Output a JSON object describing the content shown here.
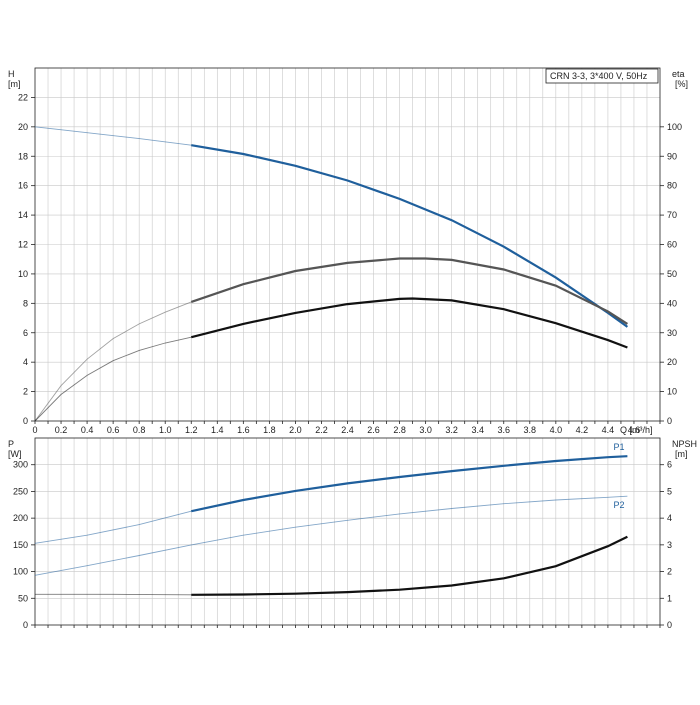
{
  "colors": {
    "blue": "#1f5f9c",
    "dark": "#111111",
    "grey": "#555555",
    "thin": "#9a9a9a",
    "grid": "#c8c8c8"
  },
  "chart_data": [
    {
      "type": "line",
      "legend_box": "CRN 3-3, 3*400 V, 50Hz",
      "y_left_label_line1": "H",
      "y_left_label_line2": "[m]",
      "y_right_label_line1": "eta",
      "y_right_label_line2": "[%]",
      "x_label": "Q [m³/h]",
      "xlim": [
        0,
        4.8
      ],
      "x_ticks": [
        "0",
        "0.2",
        "0.4",
        "0.6",
        "0.8",
        "1.0",
        "1.2",
        "1.4",
        "1.6",
        "1.8",
        "2.0",
        "2.2",
        "2.4",
        "2.6",
        "2.8",
        "3.0",
        "3.2",
        "3.4",
        "3.6",
        "3.8",
        "4.0",
        "4.2",
        "4.4",
        "4.6"
      ],
      "y_left_lim": [
        0,
        24
      ],
      "y_left_ticks": [
        "0",
        "2",
        "4",
        "6",
        "8",
        "10",
        "12",
        "14",
        "16",
        "18",
        "20",
        "22"
      ],
      "y_right_lim": [
        0,
        120
      ],
      "y_right_ticks": [
        "0",
        "10",
        "20",
        "30",
        "40",
        "50",
        "60",
        "70",
        "80",
        "90",
        "100"
      ],
      "grid": true,
      "series": [
        {
          "axis": "left",
          "color_key": "blue",
          "bold_from_x": 1.2,
          "x": [
            0,
            0.4,
            0.8,
            1.2,
            1.6,
            2.0,
            2.4,
            2.8,
            3.2,
            3.6,
            4.0,
            4.4,
            4.55
          ],
          "y": [
            20.0,
            19.6,
            19.2,
            18.75,
            18.15,
            17.35,
            16.35,
            15.1,
            13.65,
            11.85,
            9.75,
            7.35,
            6.4
          ]
        },
        {
          "axis": "left",
          "color_key": "grey",
          "bold_from_x": 1.2,
          "x": [
            0,
            0.2,
            0.4,
            0.6,
            0.8,
            1.0,
            1.2,
            1.6,
            2.0,
            2.4,
            2.8,
            3.0,
            3.2,
            3.6,
            4.0,
            4.4,
            4.55
          ],
          "y": [
            0,
            2.4,
            4.2,
            5.6,
            6.6,
            7.4,
            8.1,
            9.3,
            10.2,
            10.75,
            11.05,
            11.05,
            10.95,
            10.3,
            9.2,
            7.45,
            6.6
          ]
        },
        {
          "axis": "left",
          "color_key": "dark",
          "bold_from_x": 1.2,
          "x": [
            0,
            0.2,
            0.4,
            0.6,
            0.8,
            1.0,
            1.2,
            1.6,
            2.0,
            2.4,
            2.8,
            2.9,
            3.2,
            3.6,
            4.0,
            4.4,
            4.55
          ],
          "y": [
            0,
            1.8,
            3.1,
            4.1,
            4.8,
            5.3,
            5.7,
            6.6,
            7.35,
            7.95,
            8.3,
            8.33,
            8.2,
            7.6,
            6.65,
            5.5,
            5.0
          ]
        }
      ]
    },
    {
      "type": "line",
      "y_left_label_line1": "P",
      "y_left_label_line2": "[W]",
      "y_right_label_line1": "NPSH",
      "y_right_label_line2": "[m]",
      "xlim": [
        0,
        4.8
      ],
      "y_left_lim": [
        0,
        350
      ],
      "y_left_ticks": [
        "0",
        "50",
        "100",
        "150",
        "200",
        "250",
        "300"
      ],
      "y_right_lim": [
        0,
        7
      ],
      "y_right_ticks": [
        "0",
        "1",
        "2",
        "3",
        "4",
        "5",
        "6"
      ],
      "grid": true,
      "series": [
        {
          "name": "P1",
          "axis": "left",
          "color_key": "blue",
          "bold_from_x": 1.2,
          "x": [
            0,
            0.4,
            0.8,
            1.2,
            1.6,
            2.0,
            2.4,
            2.8,
            3.2,
            3.6,
            4.0,
            4.4,
            4.55
          ],
          "y": [
            153,
            168,
            188,
            213,
            234,
            251,
            265,
            277,
            288,
            298,
            307,
            314,
            316
          ]
        },
        {
          "name": "P2",
          "axis": "left",
          "color_key": "blue",
          "bold_from_x": 99,
          "x": [
            0,
            0.4,
            0.8,
            1.2,
            1.6,
            2.0,
            2.4,
            2.8,
            3.2,
            3.6,
            4.0,
            4.4,
            4.55
          ],
          "y": [
            93,
            111,
            130,
            150,
            168,
            183,
            196,
            208,
            218,
            227,
            234,
            239,
            241
          ]
        },
        {
          "name": "NPSH",
          "axis": "right",
          "color_key": "dark",
          "bold_from_x": 1.2,
          "x": [
            0,
            0.6,
            1.2,
            1.6,
            2.0,
            2.4,
            2.8,
            3.2,
            3.6,
            4.0,
            4.4,
            4.55
          ],
          "y": [
            1.15,
            1.15,
            1.13,
            1.14,
            1.17,
            1.23,
            1.32,
            1.48,
            1.75,
            2.2,
            2.95,
            3.3
          ]
        }
      ]
    }
  ]
}
